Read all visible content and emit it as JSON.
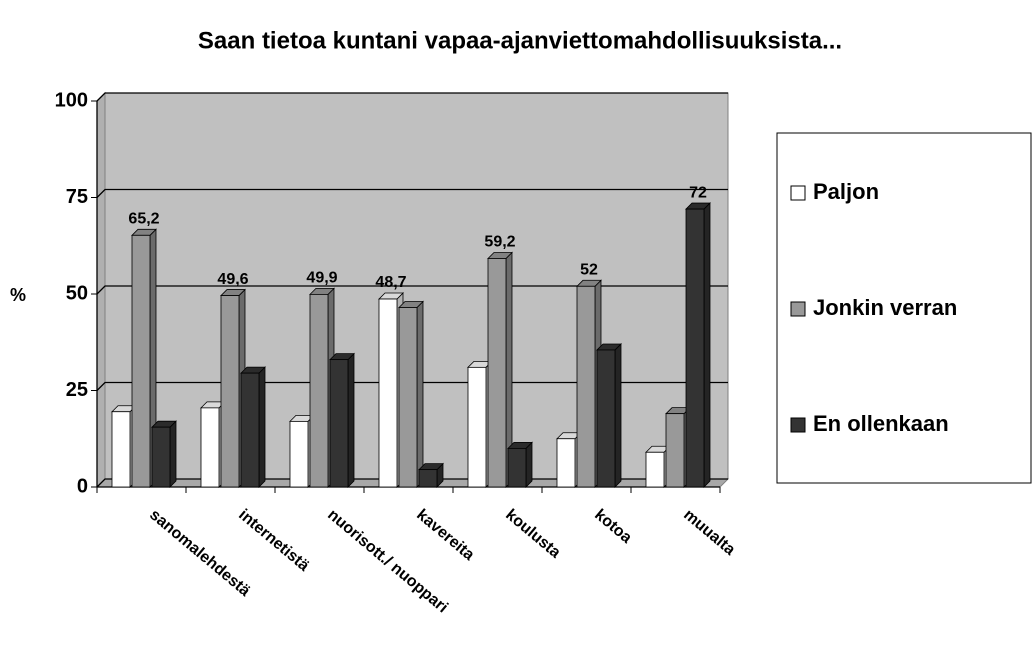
{
  "chart_data": {
    "type": "bar3d",
    "title": "Saan tietoa kuntani vapaa-ajanviettomahdollisuuksista...",
    "ylabel": "%",
    "categories": [
      "sanomalehdestä",
      "internetistä",
      "nuorisott./ nuoppari",
      "kavereita",
      "koulusta",
      "kotoa",
      "muualta"
    ],
    "series": [
      {
        "name": "Paljon",
        "color": "#ffffff",
        "values": [
          19.5,
          20.5,
          17,
          48.7,
          31,
          12.5,
          9
        ],
        "value_labels": [
          null,
          null,
          null,
          "48,7",
          null,
          null,
          null
        ]
      },
      {
        "name": "Jonkin verran",
        "color": "#999999",
        "values": [
          65.2,
          49.6,
          49.9,
          46.5,
          59.2,
          52,
          19
        ],
        "value_labels": [
          "65,2",
          "49,6",
          "49,9",
          null,
          "59,2",
          "52",
          null
        ]
      },
      {
        "name": "En ollenkaan",
        "color": "#333333",
        "values": [
          15.5,
          29.5,
          33,
          4.5,
          10,
          35.5,
          72
        ],
        "value_labels": [
          null,
          null,
          null,
          null,
          null,
          null,
          "72"
        ]
      }
    ],
    "ylim": [
      0,
      100
    ],
    "yticks": [
      0,
      25,
      50,
      75,
      100
    ],
    "grid": true,
    "legend": "right"
  }
}
